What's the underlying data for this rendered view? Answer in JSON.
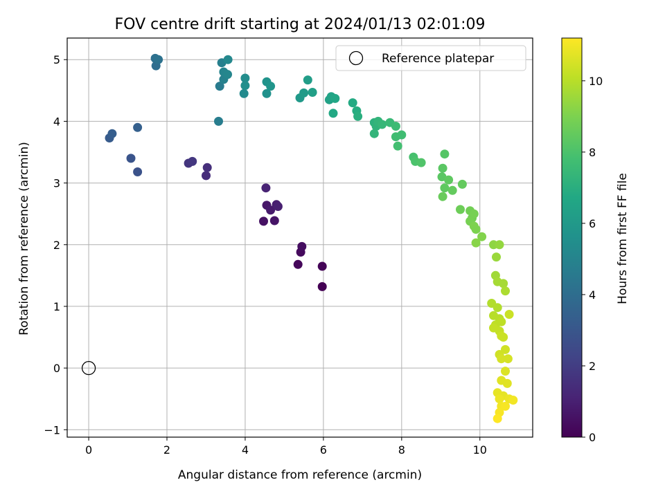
{
  "chart_data": {
    "type": "scatter",
    "title": "FOV centre drift starting at 2024/01/13 02:01:09",
    "xlabel": "Angular distance from reference (arcmin)",
    "ylabel": "Rotation from reference (arcmin)",
    "xlim": [
      -0.55,
      11.35
    ],
    "ylim": [
      -1.12,
      5.35
    ],
    "xticks": [
      0,
      2,
      4,
      6,
      8,
      10
    ],
    "yticks": [
      -1,
      0,
      1,
      2,
      3,
      4,
      5
    ],
    "grid": true,
    "legend": {
      "location": "upper right",
      "entries": [
        "Reference platepar"
      ]
    },
    "reference_point": {
      "label": "Reference platepar",
      "x": 0,
      "y": 0
    },
    "colorbar": {
      "label": "Hours from first FF file",
      "colormap": "viridis",
      "range": [
        0,
        11.2
      ],
      "ticks": [
        0,
        2,
        4,
        6,
        8,
        10
      ]
    },
    "points": [
      [
        5.97,
        1.32,
        0.0
      ],
      [
        5.97,
        1.65,
        0.1
      ],
      [
        5.35,
        1.68,
        0.2
      ],
      [
        5.42,
        1.88,
        0.3
      ],
      [
        5.45,
        1.97,
        0.4
      ],
      [
        4.47,
        2.38,
        0.5
      ],
      [
        4.75,
        2.39,
        0.6
      ],
      [
        4.55,
        2.64,
        0.7
      ],
      [
        4.65,
        2.56,
        0.8
      ],
      [
        4.8,
        2.65,
        0.9
      ],
      [
        4.84,
        2.62,
        1.0
      ],
      [
        4.53,
        2.92,
        1.1
      ],
      [
        3.0,
        3.12,
        1.4
      ],
      [
        3.03,
        3.25,
        1.5
      ],
      [
        2.55,
        3.32,
        1.7
      ],
      [
        2.65,
        3.35,
        1.8
      ],
      [
        1.25,
        3.18,
        2.8
      ],
      [
        1.08,
        3.4,
        2.9
      ],
      [
        0.53,
        3.73,
        3.2
      ],
      [
        0.6,
        3.8,
        3.3
      ],
      [
        1.25,
        3.9,
        3.4
      ],
      [
        1.72,
        4.9,
        4.0
      ],
      [
        1.7,
        5.02,
        4.1
      ],
      [
        1.78,
        5.0,
        4.2
      ],
      [
        3.35,
        4.57,
        4.6
      ],
      [
        3.32,
        4.0,
        4.7
      ],
      [
        3.4,
        4.95,
        4.8
      ],
      [
        3.45,
        4.68,
        4.9
      ],
      [
        3.45,
        4.8,
        5.0
      ],
      [
        3.55,
        4.76,
        5.1
      ],
      [
        3.56,
        5.0,
        5.2
      ],
      [
        3.97,
        4.45,
        5.3
      ],
      [
        4.0,
        4.7,
        5.4
      ],
      [
        4.0,
        4.58,
        5.5
      ],
      [
        4.55,
        4.45,
        5.6
      ],
      [
        4.55,
        4.64,
        5.7
      ],
      [
        4.65,
        4.57,
        5.8
      ],
      [
        5.4,
        4.38,
        6.0
      ],
      [
        5.5,
        4.46,
        6.1
      ],
      [
        5.6,
        4.67,
        6.2
      ],
      [
        5.72,
        4.47,
        6.3
      ],
      [
        6.15,
        4.35,
        6.4
      ],
      [
        6.2,
        4.4,
        6.5
      ],
      [
        6.3,
        4.37,
        6.6
      ],
      [
        6.25,
        4.13,
        6.7
      ],
      [
        6.75,
        4.3,
        6.8
      ],
      [
        6.85,
        4.17,
        6.9
      ],
      [
        6.88,
        4.08,
        7.0
      ],
      [
        7.3,
        3.98,
        7.1
      ],
      [
        7.35,
        3.92,
        7.2
      ],
      [
        7.4,
        4.0,
        7.3
      ],
      [
        7.3,
        3.8,
        7.3
      ],
      [
        7.5,
        3.95,
        7.4
      ],
      [
        7.7,
        3.98,
        7.5
      ],
      [
        7.85,
        3.92,
        7.6
      ],
      [
        8.0,
        3.78,
        7.7
      ],
      [
        7.85,
        3.75,
        7.7
      ],
      [
        7.9,
        3.6,
        7.8
      ],
      [
        8.3,
        3.42,
        7.9
      ],
      [
        8.35,
        3.35,
        8.0
      ],
      [
        8.5,
        3.33,
        8.1
      ],
      [
        9.1,
        3.47,
        8.2
      ],
      [
        9.05,
        3.24,
        8.3
      ],
      [
        9.03,
        3.1,
        8.3
      ],
      [
        9.2,
        3.05,
        8.4
      ],
      [
        9.1,
        2.92,
        8.4
      ],
      [
        9.3,
        2.88,
        8.5
      ],
      [
        9.55,
        2.98,
        8.5
      ],
      [
        9.05,
        2.78,
        8.6
      ],
      [
        9.5,
        2.57,
        8.7
      ],
      [
        9.75,
        2.55,
        8.8
      ],
      [
        9.8,
        2.43,
        8.8
      ],
      [
        9.85,
        2.5,
        8.9
      ],
      [
        9.75,
        2.38,
        8.9
      ],
      [
        9.85,
        2.3,
        9.0
      ],
      [
        9.9,
        2.25,
        9.0
      ],
      [
        10.05,
        2.13,
        9.1
      ],
      [
        9.9,
        2.03,
        9.2
      ],
      [
        10.35,
        2.0,
        9.3
      ],
      [
        10.5,
        2.0,
        9.4
      ],
      [
        10.42,
        1.8,
        9.5
      ],
      [
        10.4,
        1.5,
        9.6
      ],
      [
        10.45,
        1.4,
        9.7
      ],
      [
        10.6,
        1.37,
        9.7
      ],
      [
        10.65,
        1.25,
        9.8
      ],
      [
        10.3,
        1.05,
        9.9
      ],
      [
        10.45,
        0.98,
        9.9
      ],
      [
        10.35,
        0.85,
        10.0
      ],
      [
        10.5,
        0.8,
        10.0
      ],
      [
        10.4,
        0.7,
        10.1
      ],
      [
        10.55,
        0.75,
        10.1
      ],
      [
        10.35,
        0.65,
        10.2
      ],
      [
        10.5,
        0.6,
        10.2
      ],
      [
        10.55,
        0.52,
        10.3
      ],
      [
        10.6,
        0.5,
        10.3
      ],
      [
        10.75,
        0.87,
        10.3
      ],
      [
        10.65,
        0.3,
        10.4
      ],
      [
        10.5,
        0.22,
        10.4
      ],
      [
        10.55,
        0.15,
        10.5
      ],
      [
        10.72,
        0.15,
        10.5
      ],
      [
        10.65,
        -0.05,
        10.6
      ],
      [
        10.55,
        -0.2,
        10.7
      ],
      [
        10.7,
        -0.25,
        10.7
      ],
      [
        10.45,
        -0.4,
        10.8
      ],
      [
        10.6,
        -0.45,
        10.8
      ],
      [
        10.5,
        -0.5,
        10.9
      ],
      [
        10.75,
        -0.5,
        10.9
      ],
      [
        10.85,
        -0.52,
        11.0
      ],
      [
        10.55,
        -0.62,
        11.0
      ],
      [
        10.65,
        -0.62,
        11.1
      ],
      [
        10.5,
        -0.72,
        11.1
      ],
      [
        10.45,
        -0.82,
        11.2
      ]
    ]
  }
}
